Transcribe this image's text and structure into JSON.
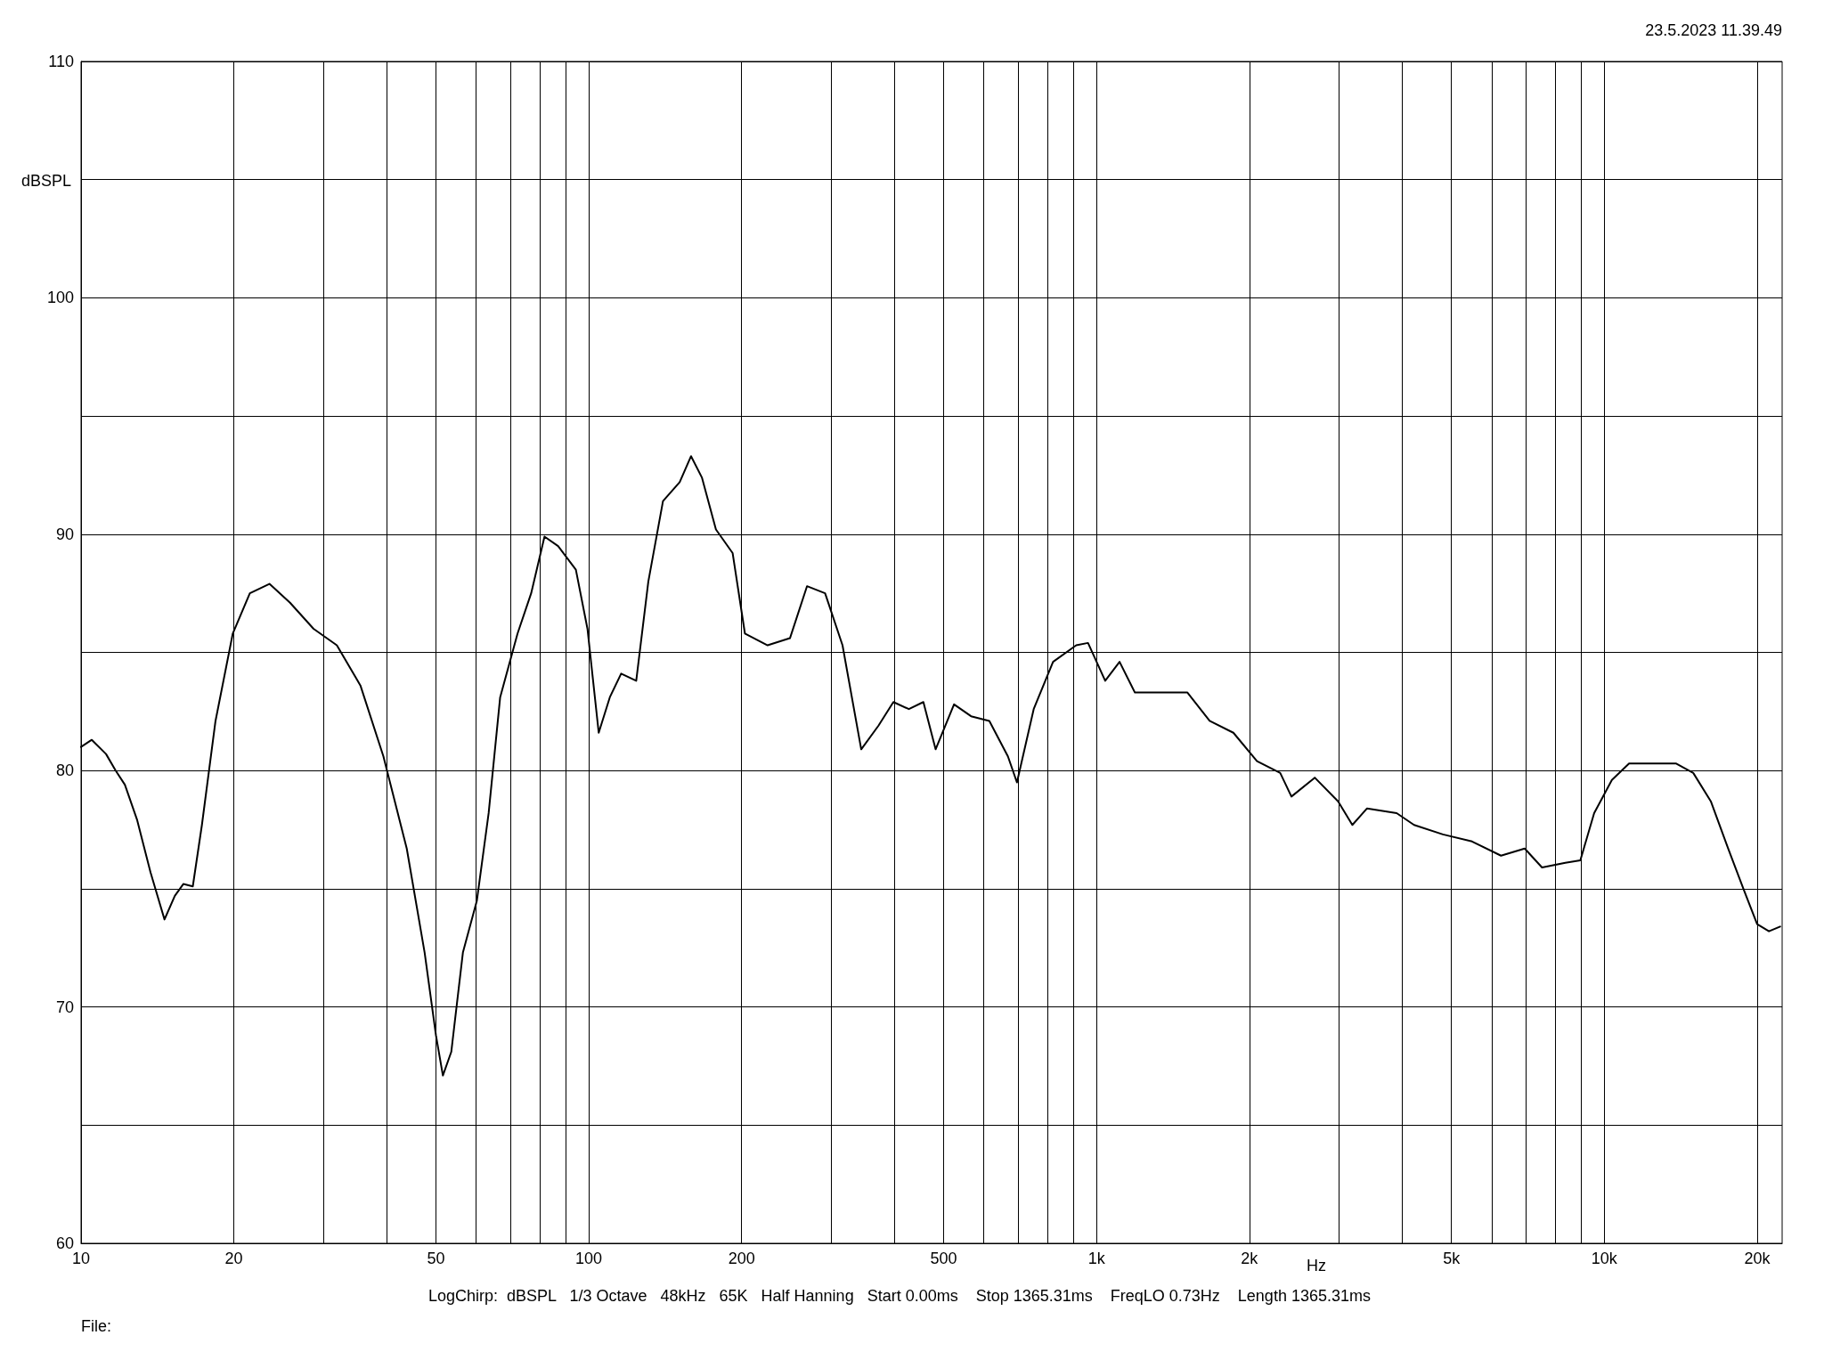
{
  "chart_data": {
    "type": "line",
    "xlabel": "Hz",
    "ylabel": "dBSPL",
    "annotations": [
      "23.5.2023 11.39.49",
      "LogChirp:  dBSPL   1/3 Octave   48kHz   65K   Half Hanning   Start 0.00ms    Stop 1365.31ms    FreqLO 0.73Hz    Length 1365.31ms",
      "File:"
    ],
    "log": "x",
    "grid": true,
    "marker": "none",
    "line_style": "solid",
    "xlim": [
      10,
      22400
    ],
    "xticks": [
      10,
      20,
      {
        "value": 30,
        "label": null
      },
      {
        "value": 40,
        "label": null
      },
      50,
      {
        "value": 60,
        "label": null
      },
      {
        "value": 70,
        "label": null
      },
      {
        "value": 80,
        "label": null
      },
      {
        "value": 90,
        "label": null
      },
      100,
      200,
      {
        "value": 300,
        "label": null
      },
      {
        "value": 400,
        "label": null
      },
      500,
      {
        "value": 600,
        "label": null
      },
      {
        "value": 700,
        "label": null
      },
      {
        "value": 800,
        "label": null
      },
      {
        "value": 900,
        "label": null
      },
      {
        "value": 1000,
        "label": "1k"
      },
      {
        "value": 2000,
        "label": "2k"
      },
      {
        "value": 3000,
        "label": null
      },
      {
        "value": 4000,
        "label": null
      },
      {
        "value": 5000,
        "label": "5k"
      },
      {
        "value": 6000,
        "label": null
      },
      {
        "value": 7000,
        "label": null
      },
      {
        "value": 8000,
        "label": null
      },
      {
        "value": 9000,
        "label": null
      },
      {
        "value": 10000,
        "label": "10k"
      },
      {
        "value": 20000,
        "label": "20k"
      }
    ],
    "ylim": [
      60,
      110
    ],
    "yticks": [
      60,
      {
        "value": 65,
        "label": null
      },
      70,
      {
        "value": 75,
        "label": null
      },
      80,
      {
        "value": 85,
        "label": null
      },
      90,
      {
        "value": 95,
        "label": null
      },
      100,
      {
        "value": 105,
        "label": null
      },
      110
    ],
    "series": [
      {
        "color": "#000000",
        "x": [
          10,
          10.5,
          11.2,
          11.7,
          12.2,
          12.9,
          13.7,
          14.6,
          15.3,
          15.9,
          16.6,
          17.3,
          18.4,
          19.9,
          21.5,
          23.5,
          25.8,
          28.7,
          31.9,
          35.5,
          39.4,
          43.8,
          47.5,
          50,
          51.6,
          53.6,
          56.5,
          60.2,
          63.5,
          66.9,
          72.4,
          77,
          81.8,
          87,
          94.3,
          99.4,
          104.6,
          110,
          115.8,
          124,
          131,
          140,
          151,
          159,
          167,
          178,
          192,
          203,
          225,
          249,
          269,
          292,
          316,
          344,
          372,
          398,
          427,
          456,
          482,
          524,
          566,
          615,
          669,
          697,
          752,
          821,
          912,
          962,
          1040,
          1110,
          1190,
          1360,
          1510,
          1670,
          1860,
          2070,
          2300,
          2420,
          2690,
          2990,
          3190,
          3410,
          3900,
          4220,
          4810,
          5490,
          6260,
          6970,
          7540,
          8380,
          8970,
          9550,
          10350,
          11190,
          12450,
          13830,
          14970,
          16210,
          17540,
          18790,
          20000,
          21100,
          22200
        ],
        "values": [
          81.0,
          81.3,
          80.7,
          80.0,
          79.4,
          77.9,
          75.7,
          73.7,
          74.7,
          75.2,
          75.1,
          77.7,
          82.1,
          85.8,
          87.5,
          87.9,
          87.1,
          86.0,
          85.3,
          83.6,
          80.6,
          76.7,
          72.3,
          68.8,
          67.1,
          68.1,
          72.3,
          74.5,
          78.2,
          83.1,
          85.8,
          87.5,
          89.9,
          89.5,
          88.5,
          86.0,
          81.6,
          83.1,
          84.1,
          83.8,
          88.0,
          91.4,
          92.2,
          93.3,
          92.4,
          90.2,
          89.2,
          85.8,
          85.3,
          85.6,
          87.8,
          87.5,
          85.3,
          80.9,
          81.9,
          82.9,
          82.6,
          82.9,
          80.9,
          82.8,
          82.3,
          82.1,
          80.6,
          79.5,
          82.6,
          84.6,
          85.3,
          85.4,
          83.8,
          84.6,
          83.3,
          83.3,
          83.3,
          82.1,
          81.6,
          80.4,
          79.9,
          78.9,
          79.7,
          78.7,
          77.7,
          78.4,
          78.2,
          77.7,
          77.3,
          77.0,
          76.4,
          76.7,
          75.9,
          76.1,
          76.2,
          78.2,
          79.6,
          80.3,
          80.3,
          80.3,
          79.9,
          78.7,
          76.7,
          75.0,
          73.5,
          73.2,
          73.4
        ]
      }
    ]
  }
}
